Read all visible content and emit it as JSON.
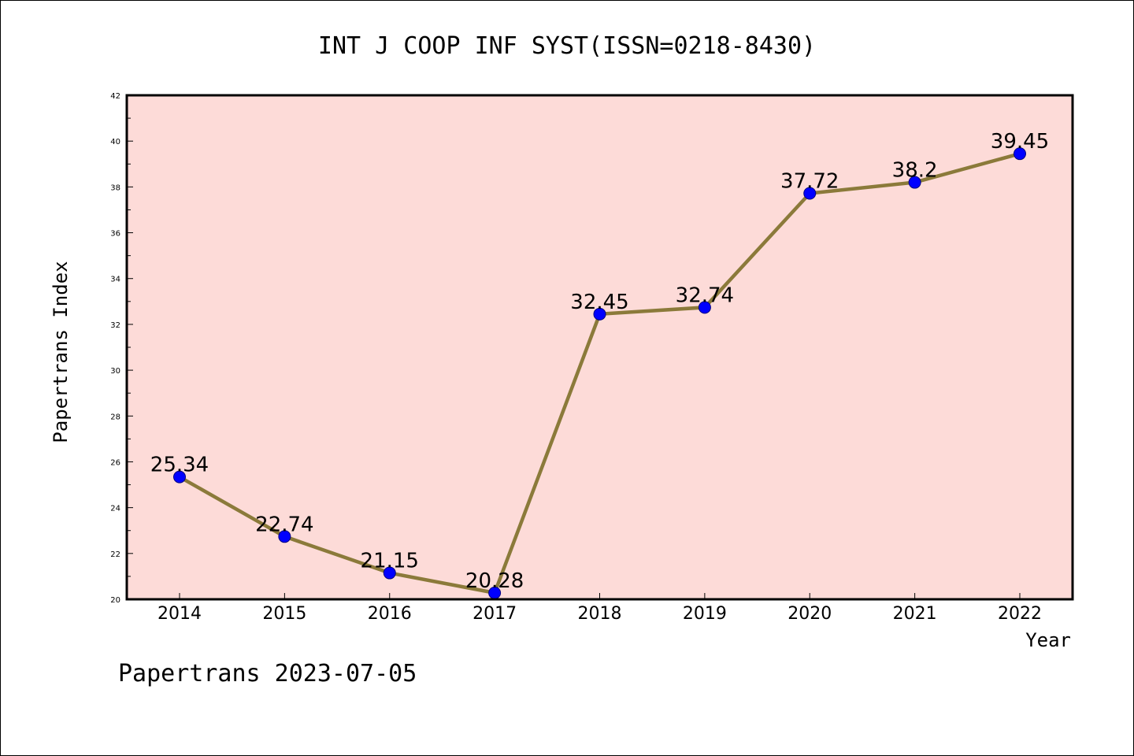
{
  "footer_text": "Papertrans 2023-07-05",
  "colors": {
    "plot_background": "#fddbd8",
    "line": "#8b7a3a",
    "marker": "#0000ff",
    "frame": "#000000"
  },
  "chart_data": {
    "type": "line",
    "title": "INT J COOP INF SYST(ISSN=0218-8430)",
    "xlabel": "Year",
    "ylabel": "Papertrans Index",
    "categories": [
      "2014",
      "2015",
      "2016",
      "2017",
      "2018",
      "2019",
      "2020",
      "2021",
      "2022"
    ],
    "series": [
      {
        "values": [
          25.34,
          22.74,
          21.15,
          20.28,
          32.45,
          32.74,
          37.72,
          38.2,
          39.45
        ]
      }
    ],
    "data_labels": [
      "25.34",
      "22.74",
      "21.15",
      "20.28",
      "32.45",
      "32.74",
      "37.72",
      "38.2",
      "39.45"
    ],
    "ylim": [
      20,
      42
    ],
    "yticks": [
      20,
      22,
      24,
      26,
      28,
      30,
      32,
      34,
      36,
      38,
      40,
      42
    ],
    "grid": false,
    "legend": "none"
  }
}
